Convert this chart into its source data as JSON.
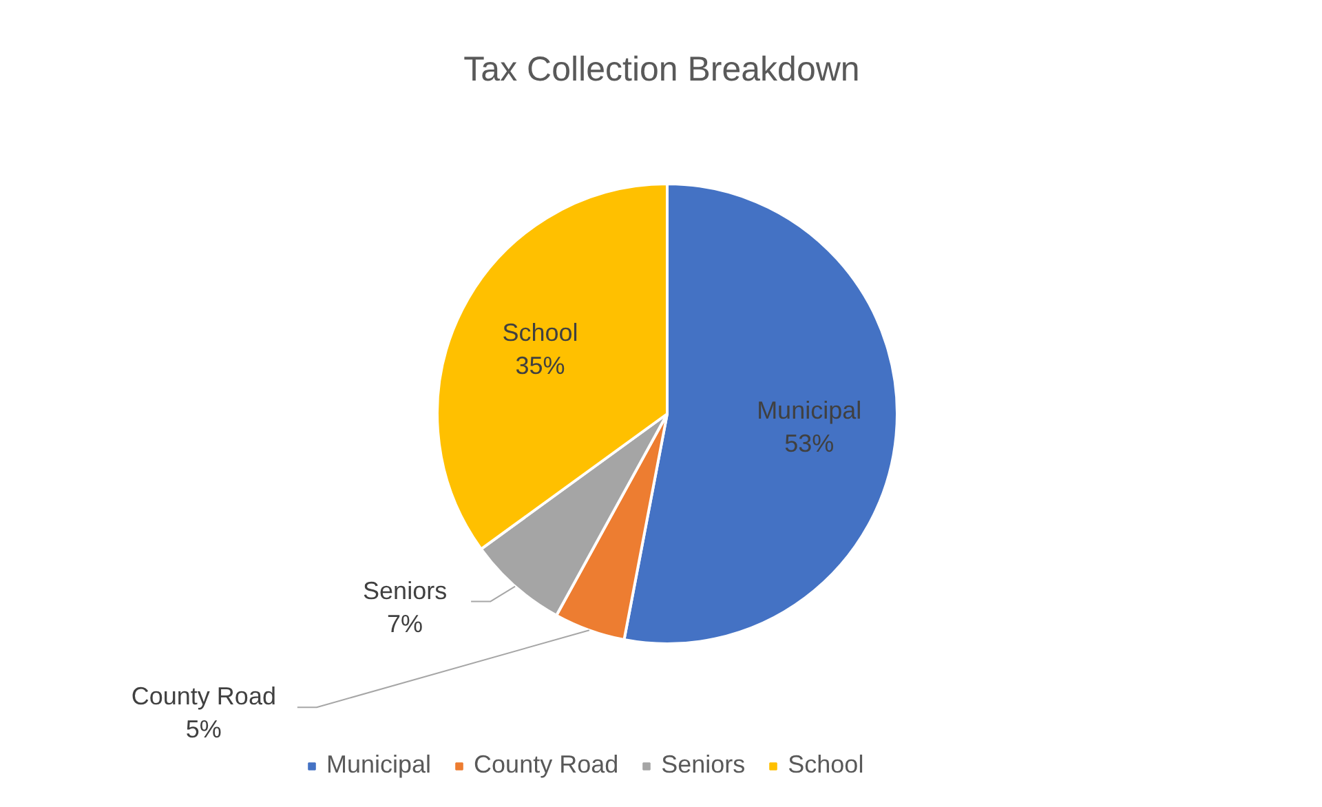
{
  "chart_data": {
    "type": "pie",
    "title": "Tax Collection Breakdown",
    "categories": [
      "Municipal",
      "County Road",
      "Seniors",
      "School"
    ],
    "values": [
      53,
      5,
      7,
      35
    ],
    "colors": [
      "#4472c4",
      "#ed7d31",
      "#a5a5a5",
      "#ffc000"
    ],
    "value_labels": [
      "53%",
      "5%",
      "7%",
      "35%"
    ],
    "legend": "bottom"
  }
}
